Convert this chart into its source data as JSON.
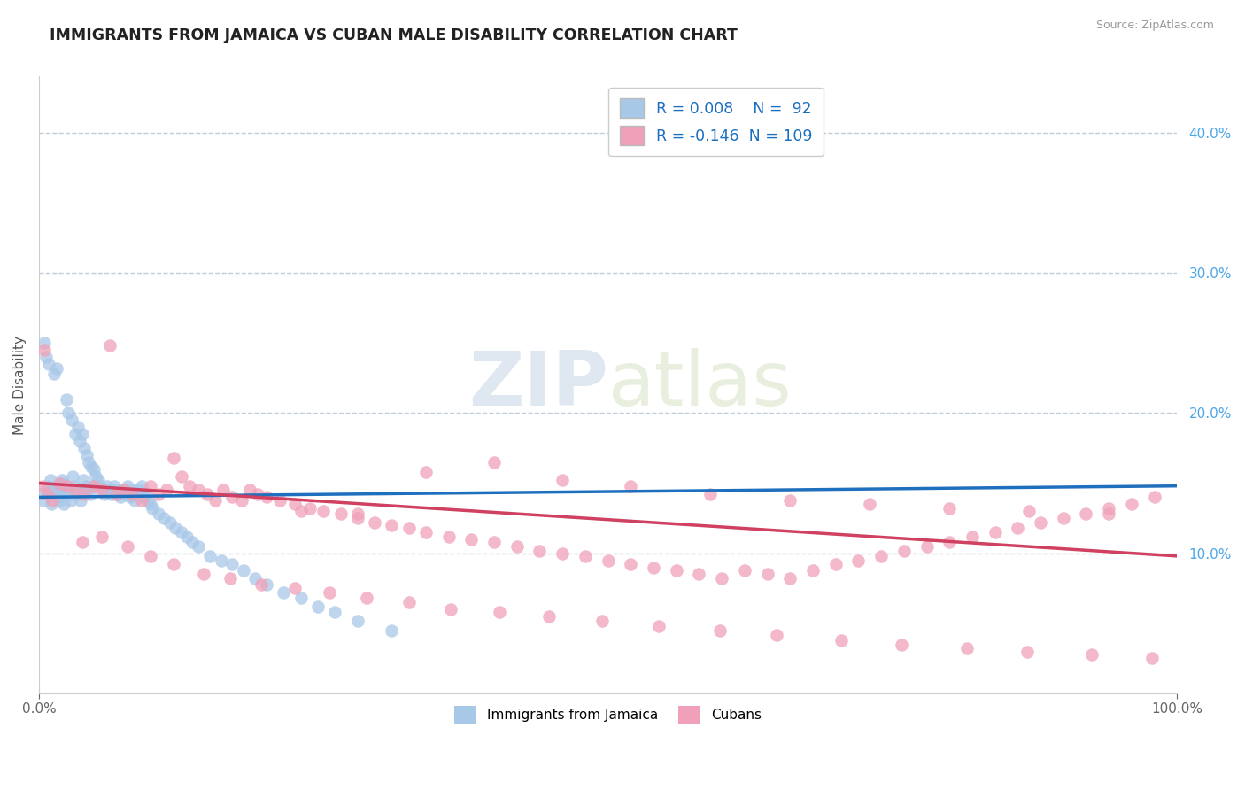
{
  "title": "IMMIGRANTS FROM JAMAICA VS CUBAN MALE DISABILITY CORRELATION CHART",
  "source": "Source: ZipAtlas.com",
  "ylabel": "Male Disability",
  "xlim": [
    0.0,
    1.0
  ],
  "ylim": [
    0.0,
    0.44
  ],
  "ytick_vals": [
    0.1,
    0.2,
    0.3,
    0.4
  ],
  "ytick_labels": [
    "10.0%",
    "20.0%",
    "30.0%",
    "40.0%"
  ],
  "xtick_vals": [
    0.0,
    1.0
  ],
  "xtick_labels": [
    "0.0%",
    "100.0%"
  ],
  "watermark_zip": "ZIP",
  "watermark_atlas": "atlas",
  "legend_r1": "R = 0.008",
  "legend_n1": "N =  92",
  "legend_r2": "R = -0.146",
  "legend_n2": "N = 109",
  "color_blue": "#a8c8e8",
  "color_pink": "#f0a0b8",
  "line_blue": "#1f6fbf",
  "line_pink": "#d04060",
  "grid_color": "#b8c8d8",
  "label_blue": "Immigrants from Jamaica",
  "label_pink": "Cubans",
  "blue_scatter_x": [
    0.003,
    0.004,
    0.005,
    0.006,
    0.007,
    0.008,
    0.009,
    0.01,
    0.011,
    0.012,
    0.013,
    0.014,
    0.015,
    0.016,
    0.017,
    0.018,
    0.019,
    0.02,
    0.021,
    0.022,
    0.023,
    0.024,
    0.025,
    0.026,
    0.027,
    0.028,
    0.029,
    0.03,
    0.031,
    0.032,
    0.033,
    0.034,
    0.035,
    0.036,
    0.037,
    0.038,
    0.039,
    0.04,
    0.041,
    0.042,
    0.043,
    0.044,
    0.045,
    0.046,
    0.047,
    0.048,
    0.05,
    0.052,
    0.054,
    0.056,
    0.058,
    0.06,
    0.062,
    0.064,
    0.066,
    0.068,
    0.07,
    0.072,
    0.074,
    0.076,
    0.078,
    0.08,
    0.082,
    0.084,
    0.086,
    0.088,
    0.09,
    0.092,
    0.094,
    0.096,
    0.098,
    0.1,
    0.105,
    0.11,
    0.115,
    0.12,
    0.125,
    0.13,
    0.135,
    0.14,
    0.15,
    0.16,
    0.17,
    0.18,
    0.19,
    0.2,
    0.215,
    0.23,
    0.245,
    0.26,
    0.28,
    0.31
  ],
  "blue_scatter_y": [
    0.143,
    0.138,
    0.25,
    0.24,
    0.142,
    0.148,
    0.235,
    0.152,
    0.135,
    0.145,
    0.228,
    0.142,
    0.148,
    0.232,
    0.14,
    0.145,
    0.138,
    0.152,
    0.15,
    0.135,
    0.148,
    0.21,
    0.145,
    0.2,
    0.142,
    0.138,
    0.195,
    0.155,
    0.148,
    0.185,
    0.145,
    0.19,
    0.142,
    0.18,
    0.138,
    0.185,
    0.152,
    0.175,
    0.148,
    0.17,
    0.145,
    0.165,
    0.142,
    0.162,
    0.148,
    0.16,
    0.155,
    0.152,
    0.148,
    0.145,
    0.142,
    0.148,
    0.145,
    0.142,
    0.148,
    0.145,
    0.142,
    0.14,
    0.145,
    0.142,
    0.148,
    0.14,
    0.145,
    0.138,
    0.142,
    0.145,
    0.148,
    0.14,
    0.142,
    0.138,
    0.135,
    0.132,
    0.128,
    0.125,
    0.122,
    0.118,
    0.115,
    0.112,
    0.108,
    0.105,
    0.098,
    0.095,
    0.092,
    0.088,
    0.082,
    0.078,
    0.072,
    0.068,
    0.062,
    0.058,
    0.052,
    0.045
  ],
  "pink_scatter_x": [
    0.003,
    0.005,
    0.008,
    0.012,
    0.018,
    0.025,
    0.032,
    0.04,
    0.048,
    0.055,
    0.062,
    0.068,
    0.075,
    0.082,
    0.09,
    0.098,
    0.105,
    0.112,
    0.118,
    0.125,
    0.132,
    0.14,
    0.148,
    0.155,
    0.162,
    0.17,
    0.178,
    0.185,
    0.192,
    0.2,
    0.212,
    0.225,
    0.238,
    0.25,
    0.265,
    0.28,
    0.295,
    0.31,
    0.325,
    0.34,
    0.36,
    0.38,
    0.4,
    0.42,
    0.44,
    0.46,
    0.48,
    0.5,
    0.52,
    0.54,
    0.56,
    0.58,
    0.6,
    0.62,
    0.64,
    0.66,
    0.68,
    0.7,
    0.72,
    0.74,
    0.76,
    0.78,
    0.8,
    0.82,
    0.84,
    0.86,
    0.88,
    0.9,
    0.92,
    0.94,
    0.96,
    0.98,
    0.038,
    0.055,
    0.078,
    0.098,
    0.118,
    0.145,
    0.168,
    0.195,
    0.225,
    0.255,
    0.288,
    0.325,
    0.362,
    0.405,
    0.448,
    0.495,
    0.545,
    0.598,
    0.648,
    0.705,
    0.758,
    0.815,
    0.868,
    0.925,
    0.978,
    0.23,
    0.28,
    0.34,
    0.4,
    0.46,
    0.52,
    0.59,
    0.66,
    0.73,
    0.8,
    0.87,
    0.94
  ],
  "pink_scatter_y": [
    0.148,
    0.245,
    0.142,
    0.138,
    0.15,
    0.148,
    0.145,
    0.142,
    0.148,
    0.145,
    0.248,
    0.142,
    0.145,
    0.142,
    0.138,
    0.148,
    0.142,
    0.145,
    0.168,
    0.155,
    0.148,
    0.145,
    0.142,
    0.138,
    0.145,
    0.14,
    0.138,
    0.145,
    0.142,
    0.14,
    0.138,
    0.135,
    0.132,
    0.13,
    0.128,
    0.125,
    0.122,
    0.12,
    0.118,
    0.115,
    0.112,
    0.11,
    0.108,
    0.105,
    0.102,
    0.1,
    0.098,
    0.095,
    0.092,
    0.09,
    0.088,
    0.085,
    0.082,
    0.088,
    0.085,
    0.082,
    0.088,
    0.092,
    0.095,
    0.098,
    0.102,
    0.105,
    0.108,
    0.112,
    0.115,
    0.118,
    0.122,
    0.125,
    0.128,
    0.132,
    0.135,
    0.14,
    0.108,
    0.112,
    0.105,
    0.098,
    0.092,
    0.085,
    0.082,
    0.078,
    0.075,
    0.072,
    0.068,
    0.065,
    0.06,
    0.058,
    0.055,
    0.052,
    0.048,
    0.045,
    0.042,
    0.038,
    0.035,
    0.032,
    0.03,
    0.028,
    0.025,
    0.13,
    0.128,
    0.158,
    0.165,
    0.152,
    0.148,
    0.142,
    0.138,
    0.135,
    0.132,
    0.13,
    0.128
  ],
  "blue_trend_y_start": 0.14,
  "blue_trend_y_end": 0.148,
  "pink_trend_y_start": 0.15,
  "pink_trend_y_end": 0.098
}
